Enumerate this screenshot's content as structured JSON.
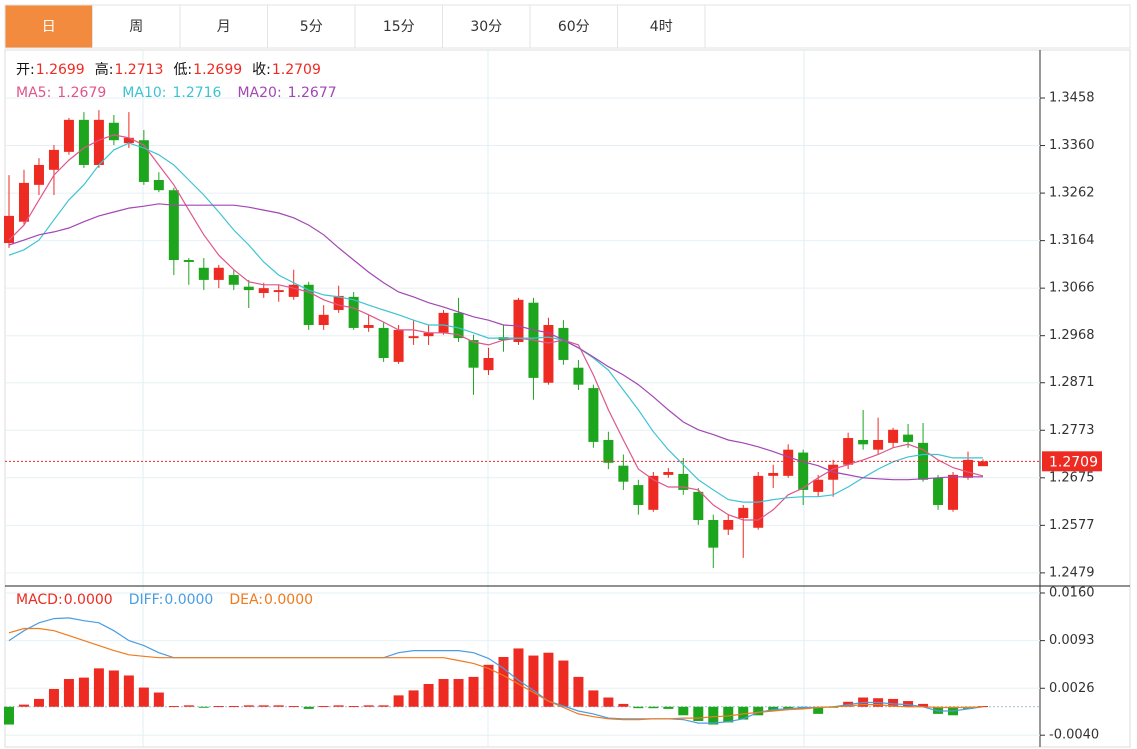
{
  "tabs": {
    "items": [
      "日",
      "周",
      "月",
      "5分",
      "15分",
      "30分",
      "60分",
      "4时"
    ],
    "active": 0
  },
  "chart_data": [
    {
      "type": "candlestick",
      "ohlc_labels": [
        "开:",
        "高:",
        "低:",
        "收:"
      ],
      "up_color": "#ee2b22",
      "down_color": "#1ea51e",
      "open": [
        1.3159,
        1.3203,
        1.3279,
        1.331,
        1.3347,
        1.3413,
        1.332,
        1.3407,
        1.3365,
        1.3371,
        1.3289,
        1.3268,
        1.3124,
        1.3108,
        1.3083,
        1.3093,
        1.3069,
        1.3056,
        1.3058,
        1.3048,
        1.3073,
        1.299,
        1.3021,
        1.3048,
        1.2984,
        1.2984,
        1.2914,
        1.2963,
        1.2967,
        1.2974,
        1.3015,
        1.2959,
        1.2897,
        1.2965,
        1.2955,
        1.3036,
        1.2871,
        1.2984,
        1.2902,
        1.286,
        1.2753,
        1.27,
        1.266,
        1.2609,
        1.2681,
        1.2683,
        1.2646,
        1.2588,
        1.2568,
        1.2592,
        1.2572,
        1.2679,
        1.2679,
        1.2727,
        1.2646,
        1.2671,
        1.2702,
        1.2753,
        1.2733,
        1.2747,
        1.2764,
        1.2747,
        1.2675,
        1.2609,
        1.2675,
        1.2699
      ],
      "high": [
        1.3299,
        1.331,
        1.3334,
        1.3361,
        1.3417,
        1.3429,
        1.3433,
        1.3423,
        1.3429,
        1.3392,
        1.3305,
        1.3273,
        1.3128,
        1.3128,
        1.3114,
        1.3104,
        1.3083,
        1.3077,
        1.3073,
        1.3104,
        1.3079,
        1.3031,
        1.3071,
        1.3058,
        1.3011,
        1.2996,
        1.299,
        1.3,
        1.299,
        1.3021,
        1.3046,
        1.297,
        1.2943,
        1.299,
        1.3046,
        1.3046,
        1.3005,
        1.3,
        1.2918,
        1.2867,
        1.277,
        1.2723,
        1.2671,
        1.2687,
        1.2695,
        1.2716,
        1.2654,
        1.2599,
        1.2599,
        1.2619,
        1.2687,
        1.2702,
        1.2744,
        1.2733,
        1.2681,
        1.2712,
        1.2768,
        1.2815,
        1.2799,
        1.2778,
        1.2786,
        1.2788,
        1.2681,
        1.2687,
        1.2729,
        1.2713
      ],
      "low": [
        1.3149,
        1.3196,
        1.3258,
        1.3258,
        1.3341,
        1.3314,
        1.3314,
        1.3361,
        1.3355,
        1.3279,
        1.3264,
        1.3093,
        1.3073,
        1.3062,
        1.3066,
        1.3062,
        1.3025,
        1.3046,
        1.3038,
        1.3042,
        1.298,
        1.298,
        1.3015,
        1.298,
        1.2976,
        1.2914,
        1.291,
        1.2949,
        1.2949,
        1.297,
        1.2955,
        1.2846,
        1.2887,
        1.2935,
        1.2949,
        1.2836,
        1.2867,
        1.2908,
        1.2856,
        1.2737,
        1.2693,
        1.265,
        1.2599,
        1.2605,
        1.2675,
        1.264,
        1.2578,
        1.2489,
        1.2557,
        1.251,
        1.2568,
        1.2654,
        1.2675,
        1.2619,
        1.2636,
        1.2636,
        1.2693,
        1.2733,
        1.2723,
        1.2737,
        1.2737,
        1.2667,
        1.2609,
        1.2605,
        1.2671,
        1.2699
      ],
      "close": [
        1.3215,
        1.3283,
        1.332,
        1.3351,
        1.3413,
        1.332,
        1.3413,
        1.3371,
        1.3376,
        1.3285,
        1.3268,
        1.3124,
        1.312,
        1.3083,
        1.3108,
        1.3073,
        1.3062,
        1.3066,
        1.3062,
        1.3073,
        1.299,
        1.3011,
        1.305,
        1.2984,
        1.299,
        1.2922,
        1.298,
        1.2967,
        1.2974,
        1.3015,
        1.2963,
        1.2902,
        1.2922,
        1.2959,
        1.3042,
        1.2881,
        1.299,
        1.2918,
        1.2867,
        1.2749,
        1.2706,
        1.2667,
        1.2619,
        1.2679,
        1.2687,
        1.265,
        1.2588,
        1.2531,
        1.2588,
        1.2613,
        1.2679,
        1.2685,
        1.2733,
        1.265,
        1.2671,
        1.2702,
        1.2757,
        1.2744,
        1.2753,
        1.2774,
        1.2749,
        1.2671,
        1.2619,
        1.2681,
        1.2712,
        1.2709
      ],
      "series": [
        {
          "name": "MA5:",
          "color": "#e0558c",
          "values": [
            1.3165,
            1.3196,
            1.3248,
            1.3299,
            1.333,
            1.3355,
            1.3371,
            1.3382,
            1.3376,
            1.3361,
            1.332,
            1.3279,
            1.3227,
            1.3176,
            1.3134,
            1.3104,
            1.3079,
            1.3073,
            1.3073,
            1.3066,
            1.3058,
            1.3042,
            1.3031,
            1.3025,
            1.3011,
            1.2996,
            1.298,
            1.298,
            1.2974,
            1.2974,
            1.297,
            1.2955,
            1.2949,
            1.2959,
            1.2963,
            1.2959,
            1.2953,
            1.2959,
            1.2949,
            1.2887,
            1.2815,
            1.2753,
            1.2693,
            1.2671,
            1.2656,
            1.2656,
            1.265,
            1.2619,
            1.2599,
            1.2588,
            1.2588,
            1.2609,
            1.264,
            1.2654,
            1.2675,
            1.2693,
            1.2702,
            1.2712,
            1.2723,
            1.2737,
            1.2744,
            1.2733,
            1.2712,
            1.2696,
            1.2687,
            1.2679
          ]
        },
        {
          "name": "MA10:",
          "color": "#3fc3d3",
          "values": [
            1.3134,
            1.3145,
            1.3165,
            1.3207,
            1.3248,
            1.3279,
            1.332,
            1.3351,
            1.3365,
            1.3355,
            1.3341,
            1.332,
            1.3289,
            1.3258,
            1.3223,
            1.3186,
            1.3155,
            1.312,
            1.3093,
            1.3077,
            1.3062,
            1.3052,
            1.3048,
            1.3042,
            1.3031,
            1.3021,
            1.3011,
            1.3,
            1.299,
            1.299,
            1.2984,
            1.2974,
            1.2963,
            1.2963,
            1.2963,
            1.2963,
            1.2965,
            1.2959,
            1.2943,
            1.2922,
            1.2897,
            1.2856,
            1.2815,
            1.277,
            1.2733,
            1.2702,
            1.2671,
            1.265,
            1.263,
            1.2625,
            1.2625,
            1.263,
            1.2634,
            1.2636,
            1.2636,
            1.264,
            1.2656,
            1.2675,
            1.2693,
            1.2708,
            1.2718,
            1.2723,
            1.2723,
            1.2716,
            1.2716,
            1.2716
          ]
        },
        {
          "name": "MA20:",
          "color": "#a247b3",
          "values": [
            1.3155,
            1.3165,
            1.3176,
            1.3182,
            1.319,
            1.3203,
            1.3215,
            1.3223,
            1.3231,
            1.3235,
            1.324,
            1.3237,
            1.3237,
            1.3237,
            1.3237,
            1.3237,
            1.3233,
            1.3227,
            1.3221,
            1.3211,
            1.3196,
            1.3176,
            1.3149,
            1.3124,
            1.3099,
            1.3077,
            1.3058,
            1.3048,
            1.3036,
            1.3027,
            1.3017,
            1.3007,
            1.3,
            1.299,
            1.2988,
            1.298,
            1.2974,
            1.2959,
            1.2943,
            1.2924,
            1.2904,
            1.2887,
            1.2867,
            1.2842,
            1.2815,
            1.279,
            1.2774,
            1.2764,
            1.2753,
            1.2747,
            1.2739,
            1.2729,
            1.2718,
            1.2708,
            1.27,
            1.2687,
            1.2681,
            1.2675,
            1.2673,
            1.2671,
            1.2671,
            1.2673,
            1.2675,
            1.2677,
            1.2677,
            1.2677
          ]
        }
      ],
      "last_price": 1.2709,
      "last_price_color": "#ee2b22",
      "ylim": [
        1.2454,
        1.3557
      ],
      "yticks": [
        1.3458,
        {
          "value": 1.336,
          "label": "1.3360"
        },
        1.3262,
        1.3164,
        1.3066,
        1.2968,
        1.2871,
        1.2773,
        1.2675,
        1.2577,
        1.2479
      ],
      "grid": true
    },
    {
      "type": "macd",
      "bars": {
        "name": "MACD:",
        "readout": "0.0000",
        "color": "#ee2b22",
        "up_color": "#ee2b22",
        "down_color": "#1ea51e",
        "values": [
          -0.0025,
          0.0003,
          0.0011,
          0.0025,
          0.0039,
          0.0041,
          0.0054,
          0.0051,
          0.0044,
          0.0027,
          0.002,
          0.0001,
          0.0002,
          -0.0001,
          0.0001,
          0.0001,
          0.0002,
          0.0002,
          0.0002,
          0.0001,
          -0.0003,
          0.0001,
          0.0002,
          0.0001,
          0.0002,
          0.0002,
          0.0016,
          0.0023,
          0.0032,
          0.0039,
          0.0039,
          0.0042,
          0.0059,
          0.007,
          0.0082,
          0.0072,
          0.0076,
          0.0065,
          0.0042,
          0.0023,
          0.0013,
          0.0004,
          -0.0002,
          -0.0002,
          -0.0003,
          -0.0012,
          -0.002,
          -0.0025,
          -0.0022,
          -0.0018,
          -0.0012,
          -0.0006,
          -0.0004,
          -0.0003,
          -0.001,
          -0.0001,
          0.0007,
          0.0013,
          0.0012,
          0.0011,
          0.0008,
          0.0004,
          -0.001,
          -0.0012,
          -0.0003,
          0.0001
        ]
      },
      "series": [
        {
          "name": "DIFF:",
          "readout": "0.0000",
          "color": "#4a9de0",
          "values": [
            0.0093,
            0.0107,
            0.0118,
            0.0124,
            0.0125,
            0.0121,
            0.0118,
            0.0107,
            0.0093,
            0.0086,
            0.0076,
            0.0069,
            0.0069,
            0.0069,
            0.0069,
            0.0069,
            0.0069,
            0.0069,
            0.0069,
            0.0069,
            0.0069,
            0.0069,
            0.0069,
            0.0069,
            0.0069,
            0.0069,
            0.0076,
            0.0079,
            0.0079,
            0.0079,
            0.0079,
            0.0076,
            0.0068,
            0.0054,
            0.0037,
            0.0023,
            0.0008,
            0.0001,
            -0.0006,
            -0.001,
            -0.0016,
            -0.0017,
            -0.0017,
            -0.0017,
            -0.0017,
            -0.0018,
            -0.0023,
            -0.0023,
            -0.0021,
            -0.0017,
            -0.0008,
            -0.0004,
            -0.0003,
            -0.0001,
            -0.0001,
            0,
            0.0003,
            0.0006,
            0.0006,
            0.0004,
            0.0003,
            0,
            -0.0006,
            -0.0006,
            -0.0003,
            0
          ]
        },
        {
          "name": "DEA:",
          "readout": "0.0000",
          "color": "#f07a1e",
          "values": [
            0.0104,
            0.011,
            0.011,
            0.0107,
            0.01,
            0.0093,
            0.0086,
            0.0079,
            0.0073,
            0.0071,
            0.0069,
            0.0069,
            0.0069,
            0.0069,
            0.0069,
            0.0069,
            0.0069,
            0.0069,
            0.0069,
            0.0069,
            0.0069,
            0.0069,
            0.0069,
            0.0069,
            0.0069,
            0.0069,
            0.0069,
            0.0069,
            0.0069,
            0.0069,
            0.0065,
            0.0061,
            0.0054,
            0.0044,
            0.0032,
            0.002,
            0.0008,
            -0.0001,
            -0.001,
            -0.0014,
            -0.0017,
            -0.0018,
            -0.0018,
            -0.0017,
            -0.0017,
            -0.0016,
            -0.0016,
            -0.0014,
            -0.0013,
            -0.001,
            -0.0008,
            -0.0006,
            -0.0004,
            -0.0003,
            -0.0001,
            0,
            0.0001,
            0.0003,
            0.0003,
            0.0001,
            0,
            0,
            -0.0001,
            -0.0001,
            -0.0001,
            0
          ]
        }
      ],
      "ylim": [
        -0.0058,
        0.0167
      ],
      "yticks": [
        {
          "value": 0.016,
          "label": "0.0160"
        },
        0.0093,
        0.0026,
        {
          "value": -0.004,
          "label": "-0.0040"
        }
      ],
      "grid": true
    }
  ]
}
